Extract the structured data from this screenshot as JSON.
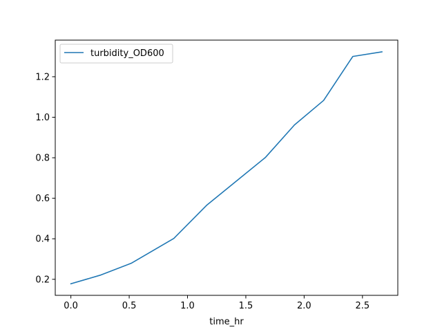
{
  "chart_data": {
    "type": "line",
    "title": "",
    "xlabel": "time_hr",
    "ylabel": "",
    "xlim": [
      -0.134,
      2.803
    ],
    "ylim": [
      0.1208,
      1.3807
    ],
    "xticks": [
      0.0,
      0.5,
      1.0,
      1.5,
      2.0,
      2.5
    ],
    "xtick_labels": [
      "0.0",
      "0.5",
      "1.0",
      "1.5",
      "2.0",
      "2.5"
    ],
    "yticks": [
      0.2,
      0.4,
      0.6,
      0.8,
      1.0,
      1.2
    ],
    "ytick_labels": [
      "0.2",
      "0.4",
      "0.6",
      "0.8",
      "1.0",
      "1.2"
    ],
    "grid": false,
    "legend_position": "upper-left",
    "series": [
      {
        "name": "turbidity_OD600",
        "color": "#1f77b4",
        "x": [
          0.0,
          0.25,
          0.517,
          0.883,
          1.167,
          1.667,
          1.917,
          2.167,
          2.417,
          2.667
        ],
        "y": [
          0.178,
          0.22,
          0.279,
          0.402,
          0.567,
          0.801,
          0.962,
          1.083,
          1.3,
          1.323
        ]
      }
    ]
  }
}
